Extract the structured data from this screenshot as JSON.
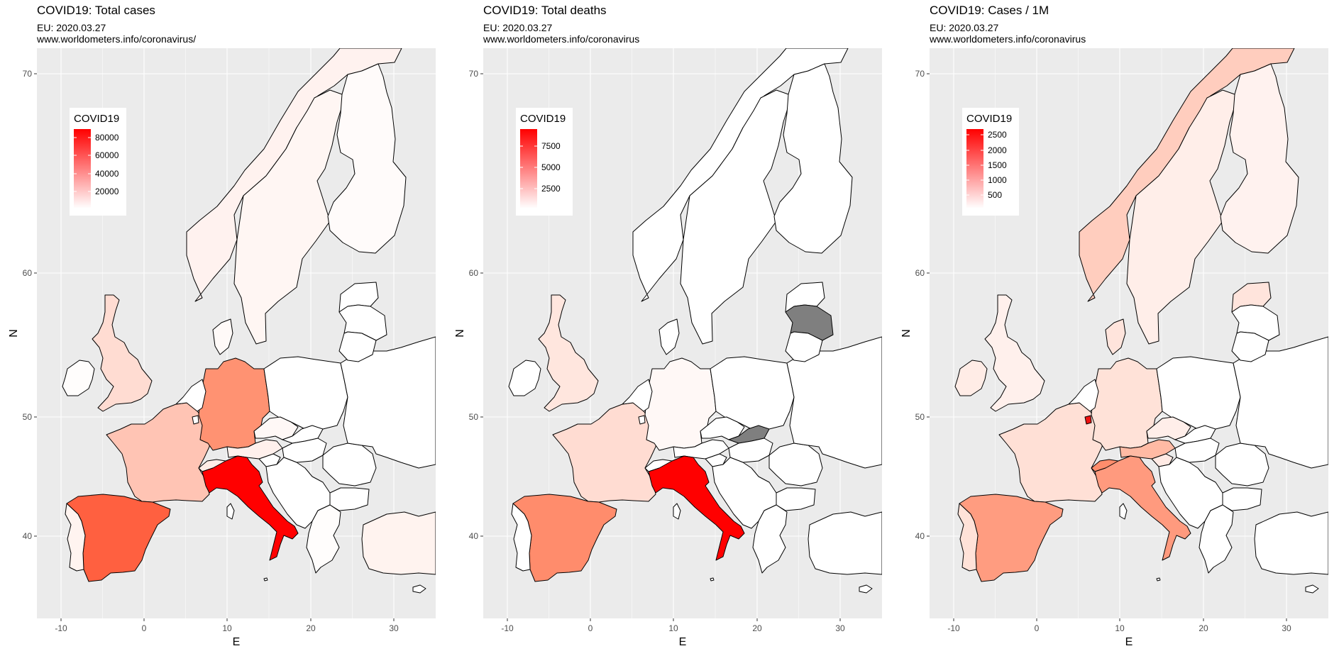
{
  "panels": [
    {
      "title": "COVID19: Total cases",
      "subtitle1": "EU: 2020.03.27",
      "subtitle2": "www.worldometers.info/coronavirus/",
      "legend": {
        "title": "COVID19",
        "ticks": [
          "80000",
          "60000",
          "40000",
          "20000"
        ]
      }
    },
    {
      "title": "COVID19: Total deaths",
      "subtitle1": "EU: 2020.03.27",
      "subtitle2": "www.worldometers.info/coronavirus",
      "legend": {
        "title": "COVID19",
        "ticks": [
          "7500",
          "5000",
          "2500"
        ]
      }
    },
    {
      "title": "COVID19: Cases / 1M",
      "subtitle1": "EU: 2020.03.27",
      "subtitle2": "www.worldometers.info/coronavirus",
      "legend": {
        "title": "COVID19",
        "ticks": [
          "2500",
          "2000",
          "1500",
          "1000",
          "500"
        ]
      }
    }
  ],
  "axes": {
    "xlabel": "E",
    "ylabel": "N",
    "xticks": [
      "-10",
      "0",
      "10",
      "20",
      "30"
    ],
    "yticks": [
      "70",
      "60",
      "50",
      "40"
    ]
  },
  "colors": {
    "panel_bg": "#ebebeb",
    "grid": "#ffffff",
    "low": "#ffffff",
    "high": "#ff0000",
    "missing": "#7f7f7f"
  },
  "map_fills": {
    "cases": {
      "italy": "#ff0000",
      "spain": "#ff6040",
      "germany": "#ff9272",
      "france": "#ffc4b4",
      "uk": "#ffdcd2",
      "switzerland": "#ffece6",
      "austria": "#fff0ec",
      "belgium": "#ffeae4",
      "netherlands": "#ffeae4",
      "norway": "#fff2ef",
      "sweden": "#fff6f3",
      "finland": "#fffbfa",
      "portugal": "#fff4f0",
      "ireland": "#fffdfc",
      "denmark": "#fffaf8",
      "poland": "#ffffff",
      "czech": "#fff8f6",
      "greece": "#fffdfc",
      "turkey": "#fff3ef",
      "others": "#ffffff"
    },
    "deaths": {
      "italy": "#ff0000",
      "spain": "#ff8c6c",
      "france": "#ffdcd2",
      "uk": "#ffe6de",
      "netherlands": "#fff0ec",
      "germany": "#fff8f6",
      "belgium": "#fff4f0",
      "latvia": "#7f7f7f",
      "slovakia": "#7f7f7f",
      "others": "#ffffff"
    },
    "per_million": {
      "luxembourg": "#ee1111",
      "switzerland": "#ff8d6c",
      "italy": "#ff9a7e",
      "spain": "#ff9c80",
      "austria": "#ffbaa4",
      "norway": "#ffcdbe",
      "belgium": "#ffbba6",
      "france": "#ffe0d6",
      "germany": "#ffe2d8",
      "netherlands": "#ffe6de",
      "portugal": "#ffe2d8",
      "denmark": "#ffe4dc",
      "sweden": "#ffeee9",
      "finland": "#fff2ef",
      "estonia": "#ffe4dc",
      "uk": "#fff0ec",
      "ireland": "#ffece6",
      "czech": "#ffeee9",
      "slovenia": "#ffeae4",
      "others": "#ffffff"
    }
  }
}
